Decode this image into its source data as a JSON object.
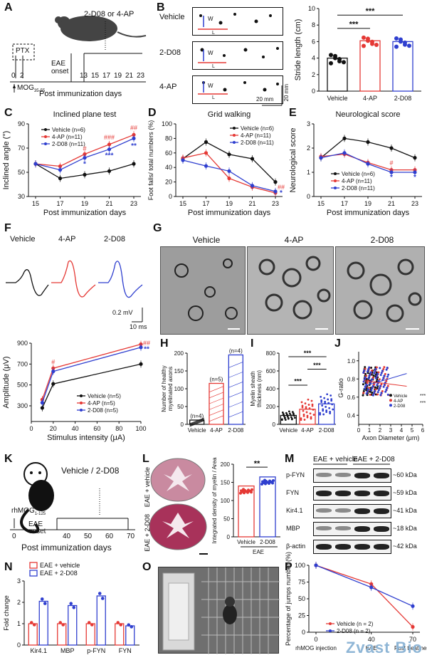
{
  "panels": {
    "A": {
      "letter": "A",
      "label": "2-D08 or 4-AP",
      "ptx": "PTX",
      "eae_onset": "EAE onset",
      "ticks": [
        "0",
        "2",
        "13",
        "15",
        "17",
        "19",
        "21",
        "23"
      ],
      "mog": "MOG",
      "mog_sub": "35-55",
      "xlabel": "Post immunization days"
    },
    "B": {
      "letter": "B",
      "rows": [
        "Vehicle",
        "2-D08",
        "4-AP"
      ],
      "w": "W",
      "l": "L",
      "scale_x": "20 mm",
      "scale_y": "20 mm",
      "chart_data": {
        "type": "bar",
        "categories": [
          "Vehicle",
          "4-AP",
          "2-D08"
        ],
        "values": [
          4.0,
          6.1,
          6.0
        ],
        "ylabel": "Stride length (cm)",
        "ylim": [
          0,
          10
        ],
        "yticks": [
          "0",
          "2",
          "4",
          "6",
          "8",
          "10"
        ],
        "sig": [
          "***",
          "***"
        ]
      }
    },
    "C": {
      "letter": "C",
      "chart_data": {
        "type": "line",
        "title": "Inclined plane test",
        "ylabel": "Inclined angle (°)",
        "xlabel": "Post immunization days",
        "x": [
          15,
          17,
          19,
          21,
          23
        ],
        "ylim": [
          30,
          90
        ],
        "yticks": [
          "30",
          "50",
          "70",
          "90"
        ],
        "series": [
          {
            "name": "Vehicle (n=6)",
            "values": [
              57,
              45,
              48,
              51,
              57
            ]
          },
          {
            "name": "4-AP (n=11)",
            "values": [
              57,
              55,
              65,
              73,
              81
            ]
          },
          {
            "name": "2-D08 (n=11)",
            "values": [
              57,
              52,
              62,
              69,
              78
            ]
          }
        ],
        "sig_red": [
          "#",
          "###",
          "##"
        ],
        "sig_blue": [
          "*",
          "***",
          "**"
        ]
      }
    },
    "D": {
      "letter": "D",
      "chart_data": {
        "type": "line",
        "title": "Grid walking",
        "ylabel": "Foot falls/ total numbers (%)",
        "xlabel": "Post immunization days",
        "x": [
          15,
          17,
          19,
          21,
          23
        ],
        "ylim": [
          0,
          100
        ],
        "yticks": [
          "0",
          "20",
          "40",
          "60",
          "80",
          "100"
        ],
        "series": [
          {
            "name": "Vehicle (n=6)",
            "values": [
              52,
              75,
              58,
              52,
              20
            ]
          },
          {
            "name": "4-AP (n=11)",
            "values": [
              53,
              60,
              25,
              13,
              5
            ]
          },
          {
            "name": "2-D08 (n=11)",
            "values": [
              50,
              42,
              35,
              15,
              7
            ]
          }
        ],
        "sig_red": [
          "##"
        ],
        "sig_blue": [
          "*"
        ]
      }
    },
    "E": {
      "letter": "E",
      "chart_data": {
        "type": "line",
        "title": "Neurological score",
        "ylabel": "Neurological score",
        "xlabel": "Post immunization days",
        "x": [
          15,
          17,
          19,
          21,
          23
        ],
        "ylim": [
          0,
          3
        ],
        "yticks": [
          "0",
          "1",
          "2",
          "3"
        ],
        "series": [
          {
            "name": "Vehicle (n=6)",
            "values": [
              1.6,
              2.4,
              2.25,
              2.0,
              1.6
            ]
          },
          {
            "name": "4-AP (n=11)",
            "values": [
              1.65,
              1.75,
              1.4,
              1.1,
              1.1
            ]
          },
          {
            "name": "2-D08 (n=11)",
            "values": [
              1.6,
              1.8,
              1.35,
              1.0,
              1.0
            ]
          }
        ],
        "sig_red": [
          "#"
        ],
        "sig_blue": [
          "*",
          "*"
        ]
      }
    },
    "F": {
      "letter": "F",
      "traces": [
        "Vehicle",
        "4-AP",
        "2-D08"
      ],
      "scale_y": "0.2 mV",
      "scale_x": "10 ms",
      "chart_data": {
        "type": "line",
        "ylabel": "Amplitude (μV)",
        "xlabel": "Stimulus intensity (μA)",
        "x": [
          10,
          20,
          100
        ],
        "ylim": [
          150,
          900
        ],
        "xlim": [
          0,
          100
        ],
        "yticks": [
          "300",
          "500",
          "700",
          "900"
        ],
        "xticks": [
          "0",
          "20",
          "40",
          "60",
          "80",
          "100"
        ],
        "series": [
          {
            "name": "Vehicle (n=5)",
            "values": [
              280,
              510,
              700
            ]
          },
          {
            "name": "4-AP (n=5)",
            "values": [
              360,
              660,
              890
            ]
          },
          {
            "name": "2-D08 (n=5)",
            "values": [
              330,
              630,
              860
            ]
          }
        ],
        "sig_red": [
          "#",
          "##"
        ],
        "sig_blue": [
          "**"
        ]
      }
    },
    "G": {
      "letter": "G",
      "images": [
        "Vehicle",
        "4-AP",
        "2-D08"
      ]
    },
    "H": {
      "letter": "H",
      "chart_data": {
        "type": "bar",
        "ylabel": "Number of healthy myelinated axons",
        "categories": [
          "Vehicle",
          "4-AP",
          "2-D08"
        ],
        "values": [
          12,
          115,
          195
        ],
        "ylim": [
          0,
          200
        ],
        "yticks": [
          "0",
          "50",
          "100",
          "150",
          "200"
        ],
        "n": [
          "(n=4)",
          "(n=5)",
          "(n=4)"
        ]
      }
    },
    "I": {
      "letter": "I",
      "chart_data": {
        "type": "bar",
        "ylabel": "Myelin sheath thickness (nm)",
        "categories": [
          "Vehicle",
          "4-AP",
          "2-D08"
        ],
        "values": [
          100,
          170,
          230
        ],
        "ylim": [
          0,
          800
        ],
        "yticks": [
          "0",
          "200",
          "400",
          "600",
          "800"
        ],
        "sig": [
          "***",
          "***",
          "***"
        ]
      }
    },
    "J": {
      "letter": "J",
      "chart_data": {
        "type": "scatter",
        "ylabel": "G-ratio",
        "xlabel": "Axon Diameter (μm)",
        "xlim": [
          0,
          6
        ],
        "ylim": [
          0.3,
          1.1
        ],
        "xticks": [
          "0",
          "1",
          "2",
          "3",
          "4",
          "5",
          "6"
        ],
        "yticks": [
          "0.4",
          "0.6",
          "0.8",
          "1.0"
        ],
        "series": [
          {
            "name": "Vehicle"
          },
          {
            "name": "4-AP"
          },
          {
            "name": "2-D08"
          }
        ],
        "sig": [
          "***",
          "***"
        ]
      }
    },
    "K": {
      "letter": "K",
      "title": "Vehicle / 2-D08",
      "rhmog": "rhMOG",
      "rhmog_sub": "1-125",
      "eae_onset": "EAE onset",
      "ticks": [
        "0",
        "40",
        "50",
        "60",
        "70"
      ],
      "xlabel": "Post immunization days"
    },
    "L": {
      "letter": "L",
      "sections": [
        "EAE + vehicle",
        "EAE + 2-D08"
      ],
      "chart_data": {
        "type": "bar",
        "ylabel": "Integrated density of myelin / Area",
        "categories": [
          "Vehicle",
          "2-D08"
        ],
        "values": [
          140,
          165
        ],
        "ylim": [
          0,
          200
        ],
        "yticks": [
          "0",
          "50",
          "100",
          "150",
          "200"
        ],
        "group": "EAE",
        "sig": [
          "**"
        ]
      }
    },
    "M": {
      "letter": "M",
      "groups": [
        "EAE + vehicle",
        "EAE + 2-D08"
      ],
      "rows": [
        {
          "name": "p-FYN",
          "kda": "~60 kDa"
        },
        {
          "name": "FYN",
          "kda": "~59 kDa"
        },
        {
          "name": "Kir4.1",
          "kda": "~41 kDa"
        },
        {
          "name": "MBP",
          "kda": "~18 kDa"
        },
        {
          "name": "β-actin",
          "kda": "~42 kDa"
        }
      ]
    },
    "N": {
      "letter": "N",
      "chart_data": {
        "type": "bar",
        "ylabel": "Fold change",
        "categories": [
          "Kir4.1",
          "MBP",
          "p-FYN",
          "FYN"
        ],
        "ylim": [
          0,
          3
        ],
        "yticks": [
          "0",
          "1",
          "2",
          "3"
        ],
        "series": [
          {
            "name": "EAE + vehicle",
            "values": [
              1.0,
              1.0,
              1.0,
              1.0
            ]
          },
          {
            "name": "EAE + 2-D08",
            "values": [
              2.05,
              1.85,
              2.3,
              0.9
            ]
          }
        ]
      }
    },
    "O": {
      "letter": "O"
    },
    "P": {
      "letter": "P",
      "chart_data": {
        "type": "line",
        "ylabel": "Percentage of jumps number (%)",
        "x": [
          0,
          40,
          70
        ],
        "xticks": [
          "0",
          "40",
          "70"
        ],
        "ylim": [
          0,
          100
        ],
        "yticks": [
          "0",
          "25",
          "50",
          "75",
          "100"
        ],
        "series": [
          {
            "name": "Vehicle (n = 2)",
            "values": [
              100,
              72,
              8
            ]
          },
          {
            "name": "2-D08 (n = 2)",
            "values": [
              100,
              67,
              39
            ]
          }
        ],
        "xlabels": [
          "rhMOG injection",
          "EAE",
          "Post treatment"
        ]
      }
    }
  },
  "watermark": "Zvast Bio",
  "colors": {
    "vehicle": "#111111",
    "ap": "#e53935",
    "d08": "#2f3fcf"
  }
}
